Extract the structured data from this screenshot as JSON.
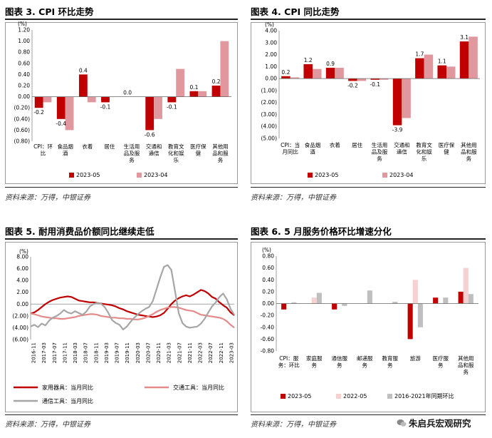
{
  "panels": [
    {
      "title": "图表 3. CPI 环比走势",
      "source": "资料来源：万得，中银证券",
      "chart_data": {
        "type": "bar",
        "unit": "(%)",
        "categories": [
          "CPI：环\n比",
          "食品烟\n酒",
          "衣着",
          "居住",
          "生活用\n品及服\n务",
          "交通和\n通信",
          "教育文\n化和娱\n乐",
          "医疗保\n健",
          "其他用\n品和服\n务"
        ],
        "series": [
          {
            "name": "2023-05",
            "color": "#c00000",
            "values": [
              -0.2,
              -0.4,
              0.4,
              -0.1,
              0.0,
              -0.6,
              -0.1,
              0.1,
              0.2
            ]
          },
          {
            "name": "2023-04",
            "color": "#e0989e",
            "values": [
              -0.1,
              -0.6,
              -0.1,
              0.0,
              0.0,
              -0.4,
              0.5,
              0.1,
              1.0
            ]
          }
        ],
        "data_labels": [
          "-0.2",
          "-0.4",
          "0.4",
          "-0.1",
          "0.0",
          "-0.6",
          "-0.1",
          "0.1",
          "0.2"
        ],
        "ylim": [
          -0.8,
          1.2
        ],
        "yticks": [
          -0.8,
          -0.6,
          -0.4,
          -0.2,
          0.0,
          0.2,
          0.4,
          0.6,
          0.8,
          1.0,
          1.2
        ],
        "ytick_labels": [
          "(0.80)",
          "(0.60)",
          "(0.40)",
          "(0.20)",
          "0.00",
          "0.20",
          "0.40",
          "0.60",
          "0.80",
          "1.00",
          "1.20"
        ],
        "legend_position": "bottom"
      }
    },
    {
      "title": "图表 4. CPI 同比走势",
      "source": "资料来源：万得，中银证券",
      "chart_data": {
        "type": "bar",
        "unit": "(%)",
        "categories": [
          "CPI：当\n月同比",
          "食品烟\n酒",
          "衣着",
          "居住",
          "生活用\n品及服\n务",
          "交通和\n通信",
          "教育文\n化和娱\n乐",
          "医疗保\n健",
          "其他用\n品和服\n务"
        ],
        "series": [
          {
            "name": "2023-05",
            "color": "#c00000",
            "values": [
              0.2,
              1.2,
              0.9,
              -0.2,
              -0.1,
              -3.9,
              1.7,
              1.1,
              3.1
            ]
          },
          {
            "name": "2023-04",
            "color": "#e0989e",
            "values": [
              0.1,
              0.8,
              0.9,
              -0.2,
              -0.1,
              -3.3,
              2.0,
              1.0,
              3.5
            ]
          }
        ],
        "data_labels": [
          "0.2",
          "1.2",
          "0.9",
          "-0.2",
          "-0.1",
          "-3.9",
          "1.7",
          "1.1",
          "3.1"
        ],
        "ylim": [
          -5.0,
          4.0
        ],
        "yticks": [
          -5,
          -4,
          -3,
          -2,
          -1,
          0,
          1,
          2,
          3,
          4
        ],
        "ytick_labels": [
          "(5.00)",
          "(4.00)",
          "(3.00)",
          "(2.00)",
          "(1.00)",
          "0.00",
          "1.00",
          "2.00",
          "3.00",
          "4.00"
        ],
        "legend_position": "bottom"
      }
    },
    {
      "title": "图表 5. 耐用消费品价额同比继续走低",
      "source": "资料来源：万得，中银证券",
      "chart_data": {
        "type": "line",
        "unit": "(%)",
        "x_tick_labels": [
          "2016-11",
          "2017-03",
          "2017-07",
          "2017-11",
          "2018-03",
          "2018-07",
          "2018-11",
          "2019-03",
          "2019-07",
          "2019-11",
          "2020-03",
          "2020-07",
          "2020-11",
          "2021-03",
          "2021-07",
          "2021-11",
          "2022-03",
          "2022-07",
          "2022-11",
          "2023-03"
        ],
        "series": [
          {
            "name": "家用器具：当月同比",
            "color": "#c00000",
            "values": [
              -1.6,
              -1.4,
              -1.0,
              -0.5,
              0.0,
              0.4,
              0.7,
              0.9,
              1.1,
              1.2,
              1.3,
              1.2,
              0.9,
              0.6,
              0.5,
              0.4,
              0.3,
              0.3,
              0.2,
              0.1,
              0.0,
              -0.1,
              -0.2,
              -0.4,
              -0.7,
              -0.9,
              -1.2,
              -1.4,
              -1.6,
              -1.8,
              -1.9,
              -2.0,
              -2.1,
              -2.2,
              -2.1,
              -1.9,
              -1.5,
              -0.8,
              0.0,
              0.6,
              1.0,
              1.3,
              1.5,
              1.3,
              1.6,
              2.0,
              2.4,
              2.2,
              1.8,
              1.2,
              0.9,
              0.3,
              -0.2,
              -0.6,
              -1.4,
              -1.9
            ]
          },
          {
            "name": "交通工具：当月同比",
            "color": "#e58a8a",
            "values": [
              -1.6,
              -1.7,
              -1.9,
              -2.1,
              -2.2,
              -2.3,
              -2.4,
              -2.4,
              -2.5,
              -2.5,
              -2.4,
              -2.3,
              -2.2,
              -2.0,
              -1.9,
              -1.8,
              -1.7,
              -1.7,
              -1.8,
              -2.0,
              -2.1,
              -2.2,
              -2.3,
              -2.3,
              -2.4,
              -2.4,
              -2.5,
              -2.5,
              -2.6,
              -2.6,
              -2.5,
              -2.3,
              -2.0,
              -1.7,
              -1.3,
              -1.0,
              -0.8,
              -0.6,
              -0.5,
              -0.5,
              -0.6,
              -0.8,
              -1.0,
              -1.1,
              -1.2,
              -1.5,
              -1.8,
              -1.9,
              -2.0,
              -2.1,
              -2.2,
              -2.3,
              -2.5,
              -2.9,
              -3.5,
              -4.0
            ]
          },
          {
            "name": "通信工具：当月同比",
            "color": "#a6a6a6",
            "values": [
              -3.8,
              -3.5,
              -3.9,
              -3.3,
              -3.6,
              -2.8,
              -2.3,
              -2.0,
              -1.6,
              -1.0,
              -1.4,
              -1.6,
              -1.2,
              -1.5,
              -1.8,
              -1.3,
              -0.4,
              0.0,
              0.2,
              0.1,
              -0.5,
              -1.5,
              -2.7,
              -3.2,
              -3.5,
              -4.3,
              -3.8,
              -3.0,
              -2.3,
              -1.7,
              -1.2,
              -0.8,
              -0.5,
              0.5,
              2.5,
              4.5,
              6.3,
              6.6,
              5.8,
              2.2,
              -1.5,
              -3.2,
              -3.8,
              -4.0,
              -3.9,
              -3.8,
              -3.3,
              -2.5,
              -1.4,
              -0.4,
              0.3,
              1.2,
              1.8,
              0.8,
              -0.8,
              -1.8
            ]
          }
        ],
        "ylim": [
          -6.0,
          8.0
        ],
        "yticks": [
          -6,
          -4,
          -2,
          0,
          2,
          4,
          6,
          8
        ],
        "ytick_labels": [
          "(6.00)",
          "(4.00)",
          "(2.00)",
          "0.00",
          "2.00",
          "4.00",
          "6.00",
          "8.00"
        ],
        "legend_position": "bottom"
      }
    },
    {
      "title": "图表 6. 5 月服务价格环比增速分化",
      "source": "资料来源：万得，中银证券",
      "chart_data": {
        "type": "bar",
        "unit": "(%)",
        "categories": [
          "CPI：服\n务：环比",
          "家庭服\n务",
          "通信服\n务",
          "邮递服\n务",
          "教育服\n务",
          "旅游",
          "医疗服\n务",
          "其他用\n品和服\n务"
        ],
        "series": [
          {
            "name": "2023-05",
            "color": "#c00000",
            "values": [
              -0.1,
              0.0,
              -0.1,
              0.0,
              0.0,
              -0.6,
              0.1,
              0.2
            ]
          },
          {
            "name": "2022-05",
            "color": "#f7d0d0",
            "values": [
              0.0,
              0.1,
              0.0,
              0.0,
              0.0,
              0.4,
              0.0,
              0.6
            ]
          },
          {
            "name": "2016-2021年同期环比",
            "color": "#bfbfbf",
            "values": [
              0.02,
              0.18,
              -0.04,
              0.22,
              0.03,
              -0.4,
              0.1,
              0.16
            ]
          }
        ],
        "ylim": [
          -0.8,
          0.8
        ],
        "yticks": [
          -0.8,
          -0.6,
          -0.4,
          -0.2,
          0.0,
          0.2,
          0.4,
          0.6,
          0.8
        ],
        "ytick_labels": [
          "-0.80",
          "-0.60",
          "-0.40",
          "-0.20",
          "0.00",
          "0.20",
          "0.40",
          "0.60",
          "0.80"
        ],
        "legend_position": "bottom"
      }
    }
  ],
  "watermark": {
    "text": "朱启兵宏观研究",
    "icon": "wechat-icon"
  }
}
